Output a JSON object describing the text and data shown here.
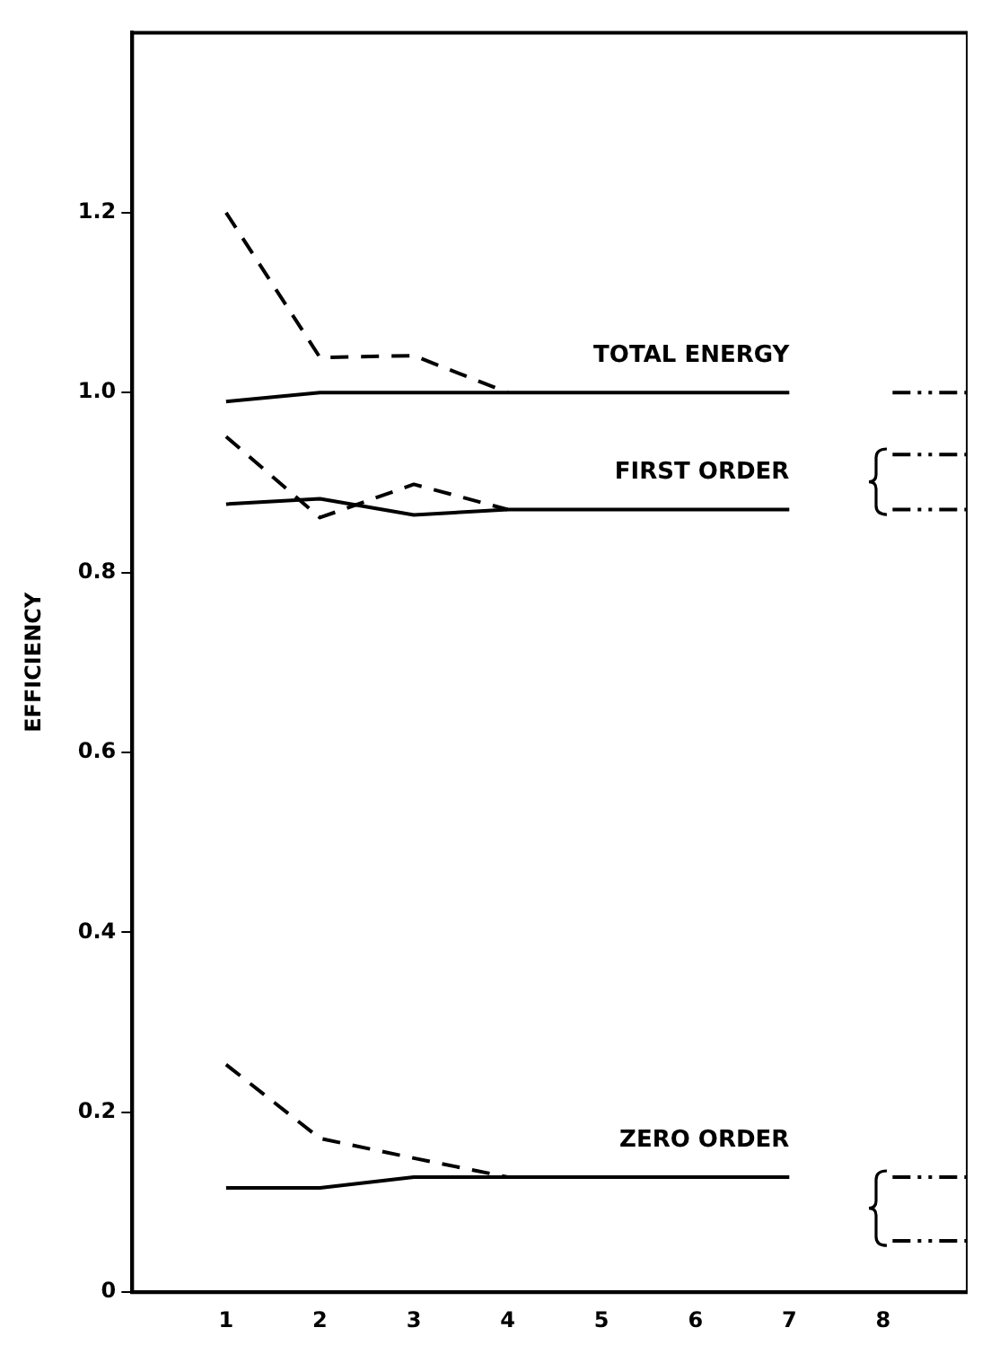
{
  "chart_data": {
    "type": "line",
    "ylabel": "EFFICIENCY",
    "xlim": [
      0,
      8.9
    ],
    "xticks": [
      1,
      2,
      3,
      4,
      5,
      6,
      7,
      8
    ],
    "ylim": [
      0,
      1.4
    ],
    "yticks": [
      0,
      0.2,
      0.4,
      0.6,
      0.8,
      {
        "value": 1,
        "label": "1.0"
      },
      1.2
    ],
    "grid": false,
    "legend": false,
    "marker": "none",
    "series": [
      {
        "name": "TOTAL ENERGY",
        "color": "#000000",
        "line_style": "solid",
        "x": [
          1,
          2,
          3,
          4,
          5,
          6,
          7
        ],
        "values": [
          0.99,
          1.0,
          1.0,
          1.0,
          1.0,
          1.0,
          1.0
        ]
      },
      {
        "color": "#000000",
        "line_style": "dashed",
        "x": [
          1,
          2,
          3,
          4
        ],
        "values": [
          1.2,
          1.039,
          1.041,
          1.0
        ]
      },
      {
        "name": "FIRST ORDER",
        "color": "#000000",
        "line_style": "solid",
        "x": [
          1,
          2,
          3,
          4,
          5,
          6,
          7
        ],
        "values": [
          0.876,
          0.882,
          0.864,
          0.87,
          0.87,
          0.87,
          0.87
        ]
      },
      {
        "color": "#000000",
        "line_style": "dashed",
        "x": [
          1,
          2,
          3,
          4
        ],
        "values": [
          0.951,
          0.861,
          0.898,
          0.87
        ]
      },
      {
        "name": "ZERO ORDER",
        "color": "#000000",
        "line_style": "solid",
        "x": [
          1,
          2,
          3,
          4,
          5,
          6,
          7
        ],
        "values": [
          0.116,
          0.116,
          0.128,
          0.128,
          0.128,
          0.128,
          0.128
        ]
      },
      {
        "color": "#000000",
        "line_style": "dashed",
        "x": [
          1,
          2,
          3,
          4
        ],
        "values": [
          0.253,
          0.171,
          0.149,
          0.128
        ]
      },
      {
        "color": "#000000",
        "line_style": "dotted",
        "x": [
          8.1,
          8.9
        ],
        "values": [
          1.0,
          1.0
        ]
      },
      {
        "color": "#000000",
        "line_style": "dotted",
        "x": [
          8.1,
          8.9
        ],
        "values": [
          0.931,
          0.931
        ]
      },
      {
        "color": "#000000",
        "line_style": "dotted",
        "x": [
          8.1,
          8.9
        ],
        "values": [
          0.87,
          0.87
        ]
      },
      {
        "color": "#000000",
        "line_style": "dotted",
        "x": [
          8.1,
          8.9
        ],
        "values": [
          0.128,
          0.128
        ]
      },
      {
        "color": "#000000",
        "line_style": "dotted",
        "x": [
          8.1,
          8.9
        ],
        "values": [
          0.057,
          0.057
        ]
      }
    ]
  }
}
